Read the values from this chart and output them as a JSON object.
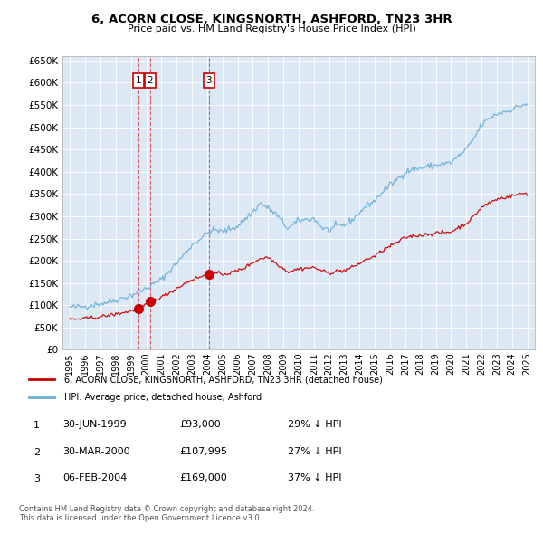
{
  "title": "6, ACORN CLOSE, KINGSNORTH, ASHFORD, TN23 3HR",
  "subtitle": "Price paid vs. HM Land Registry's House Price Index (HPI)",
  "plot_bg_color": "#dce9f5",
  "ylabel": "",
  "xlabel": "",
  "ylim": [
    0,
    660000
  ],
  "yticks": [
    0,
    50000,
    100000,
    150000,
    200000,
    250000,
    300000,
    350000,
    400000,
    450000,
    500000,
    550000,
    600000,
    650000
  ],
  "ytick_labels": [
    "£0",
    "£50K",
    "£100K",
    "£150K",
    "£200K",
    "£250K",
    "£300K",
    "£350K",
    "£400K",
    "£450K",
    "£500K",
    "£550K",
    "£600K",
    "£650K"
  ],
  "sale_prices": [
    93000,
    107995,
    169000
  ],
  "sale_labels": [
    "1",
    "2",
    "3"
  ],
  "sale_decimal": [
    1999.5,
    2000.25,
    2004.1
  ],
  "red_line_color": "#cc0000",
  "blue_line_color": "#6baed6",
  "vline_color": "#cc0000",
  "legend_line1": "6, ACORN CLOSE, KINGSNORTH, ASHFORD, TN23 3HR (detached house)",
  "legend_line2": "HPI: Average price, detached house, Ashford",
  "table_rows": [
    [
      "1",
      "30-JUN-1999",
      "£93,000",
      "29% ↓ HPI"
    ],
    [
      "2",
      "30-MAR-2000",
      "£107,995",
      "27% ↓ HPI"
    ],
    [
      "3",
      "06-FEB-2004",
      "£169,000",
      "37% ↓ HPI"
    ]
  ],
  "footer_text": "Contains HM Land Registry data © Crown copyright and database right 2024.\nThis data is licensed under the Open Government Licence v3.0.",
  "xlim_start": 1994.5,
  "xlim_end": 2025.5,
  "xtick_years": [
    1995,
    1996,
    1997,
    1998,
    1999,
    2000,
    2001,
    2002,
    2003,
    2004,
    2005,
    2006,
    2007,
    2008,
    2009,
    2010,
    2011,
    2012,
    2013,
    2014,
    2015,
    2016,
    2017,
    2018,
    2019,
    2020,
    2021,
    2022,
    2023,
    2024,
    2025
  ]
}
